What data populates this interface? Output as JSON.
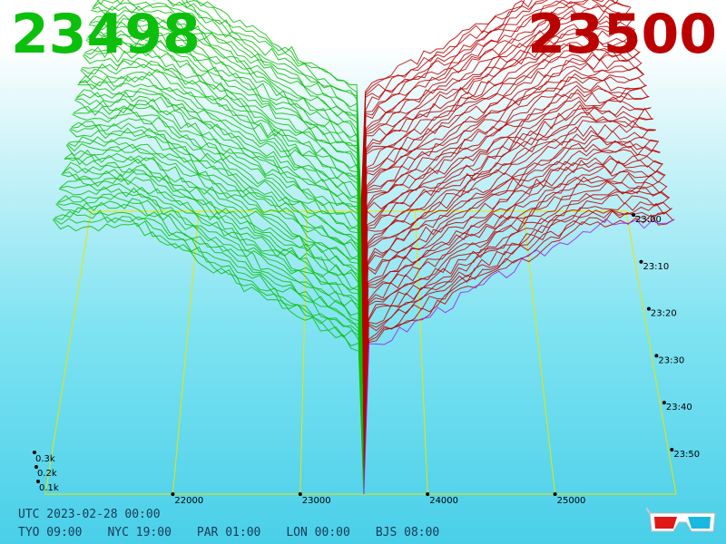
{
  "header": {
    "bid_price": "23498",
    "ask_price": "23500",
    "bid_color": "#0cbf0c",
    "ask_color": "#bb0000"
  },
  "footer": {
    "utc_line": "UTC 2023-02-28 00:00",
    "cities": [
      {
        "label": "TYO 09:00"
      },
      {
        "label": "NYC 19:00"
      },
      {
        "label": "PAR 01:00"
      },
      {
        "label": "LON 00:00"
      },
      {
        "label": "BJS 08:00"
      }
    ],
    "icon": "3d-glasses-icon"
  },
  "chart_data": {
    "type": "area",
    "style": "3d-order-book-depth-stack",
    "x_ticks": [
      "22000",
      "23000",
      "24000",
      "25000"
    ],
    "x_tick_values": [
      22000,
      23000,
      24000,
      25000
    ],
    "xlim": [
      21000,
      25950
    ],
    "volume_ticks": [
      "0.1k",
      "0.2k",
      "0.3k"
    ],
    "volume_tick_values": [
      100,
      200,
      300
    ],
    "time_ticks": [
      "23:00",
      "23:10",
      "23:20",
      "23:30",
      "23:40",
      "23:50"
    ],
    "bid_series": {
      "name": "",
      "color": "#0cbf0c"
    },
    "ask_series": {
      "name": "",
      "color": "#bb0000"
    },
    "latest_snapshot_color": "#a020f0",
    "mid_price": 23499,
    "snapshots": 60,
    "grid_color": "#e6e600"
  }
}
